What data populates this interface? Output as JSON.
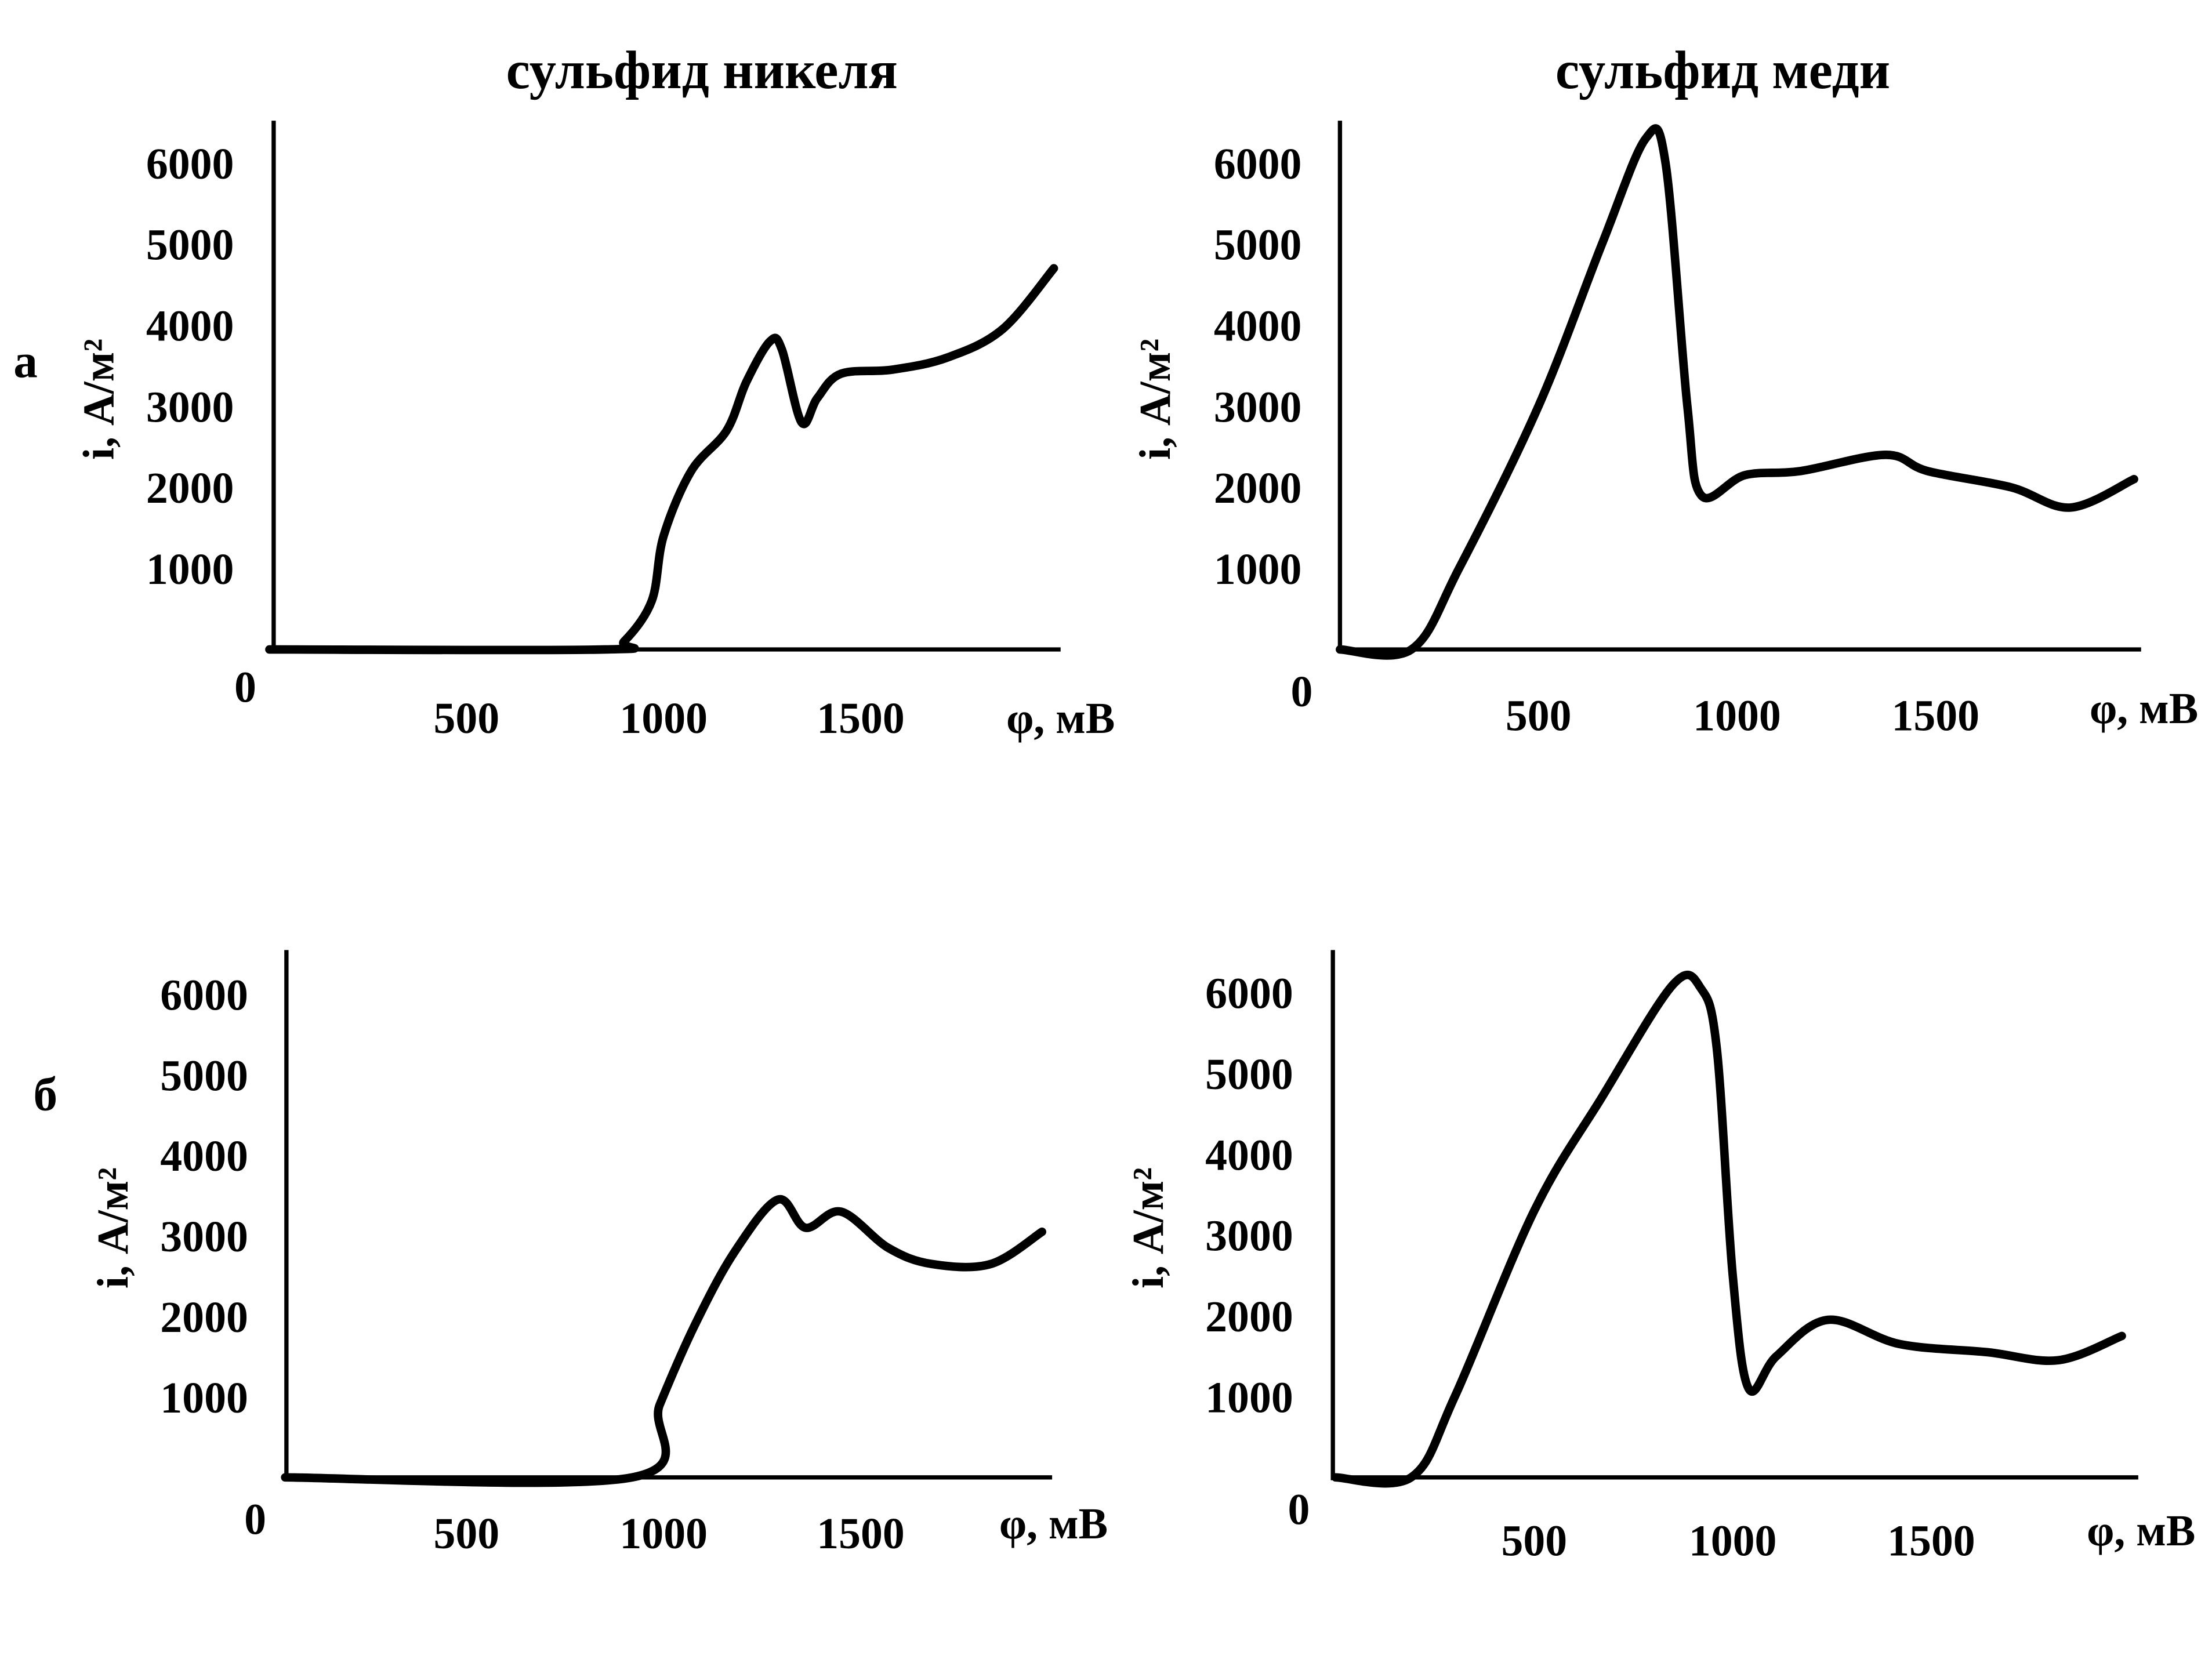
{
  "column_titles": [
    "сульфид никеля",
    "сульфид меди"
  ],
  "row_labels": [
    "а",
    "б"
  ],
  "colors": {
    "line": "#000000",
    "background": "#ffffff"
  },
  "chart_data": [
    {
      "type": "line",
      "title": "сульфид никеля",
      "row": "а",
      "xlabel": "φ, мВ",
      "ylabel": "i, А/м²",
      "origin_label": "0",
      "xticks": [
        500,
        1000,
        1500
      ],
      "yticks": [
        1000,
        2000,
        3000,
        4000,
        5000,
        6000
      ],
      "xlim": [
        0,
        2000
      ],
      "ylim": [
        0,
        6500
      ],
      "grid": false,
      "x": [
        0,
        850,
        900,
        970,
        1000,
        1070,
        1160,
        1210,
        1270,
        1300,
        1350,
        1390,
        1450,
        1580,
        1720,
        1860,
        1990
      ],
      "y": [
        0,
        0,
        100,
        600,
        1400,
        2200,
        2700,
        3300,
        3800,
        3700,
        2800,
        3100,
        3400,
        3450,
        3600,
        3950,
        4700
      ]
    },
    {
      "type": "line",
      "title": "сульфид меди",
      "row": "а",
      "xlabel": "φ, мВ",
      "ylabel": "i, А/м²",
      "origin_label": "0",
      "xticks": [
        500,
        1000,
        1500
      ],
      "yticks": [
        1000,
        2000,
        3000,
        4000,
        5000,
        6000
      ],
      "xlim": [
        0,
        2000
      ],
      "ylim": [
        0,
        6500
      ],
      "grid": false,
      "x": [
        0,
        180,
        300,
        500,
        660,
        770,
        820,
        875,
        910,
        1020,
        1160,
        1375,
        1480,
        1690,
        1840,
        2000
      ],
      "y": [
        0,
        0,
        1000,
        3000,
        5000,
        6300,
        6000,
        3000,
        1900,
        2150,
        2200,
        2400,
        2200,
        2000,
        1750,
        2100
      ]
    },
    {
      "type": "line",
      "title": "сульфид никеля",
      "row": "б",
      "xlabel": "φ, мВ",
      "ylabel": "i, А/м²",
      "origin_label": "0",
      "xticks": [
        500,
        1000,
        1500
      ],
      "yticks": [
        1000,
        2000,
        3000,
        4000,
        5000,
        6000
      ],
      "xlim": [
        0,
        2000
      ],
      "ylim": [
        0,
        6500
      ],
      "grid": false,
      "x": [
        40,
        920,
        990,
        1080,
        1180,
        1290,
        1360,
        1450,
        1570,
        1680,
        1830,
        1960
      ],
      "y": [
        0,
        0,
        900,
        1900,
        2800,
        3450,
        3100,
        3300,
        2850,
        2650,
        2650,
        3050
      ]
    },
    {
      "type": "line",
      "title": "сульфид меди",
      "row": "б",
      "xlabel": "φ, мВ",
      "ylabel": "i, А/м²",
      "origin_label": "0",
      "xticks": [
        500,
        1000,
        1500
      ],
      "yticks": [
        1000,
        2000,
        3000,
        4000,
        5000,
        6000
      ],
      "xlim": [
        0,
        2000
      ],
      "ylim": [
        0,
        6500
      ],
      "grid": false,
      "x": [
        0,
        190,
        300,
        500,
        670,
        850,
        920,
        960,
        1000,
        1040,
        1110,
        1240,
        1420,
        1640,
        1820,
        1980
      ],
      "y": [
        0,
        0,
        1000,
        3300,
        4700,
        6100,
        6050,
        5300,
        2500,
        1100,
        1500,
        1950,
        1650,
        1550,
        1450,
        1750
      ]
    }
  ]
}
